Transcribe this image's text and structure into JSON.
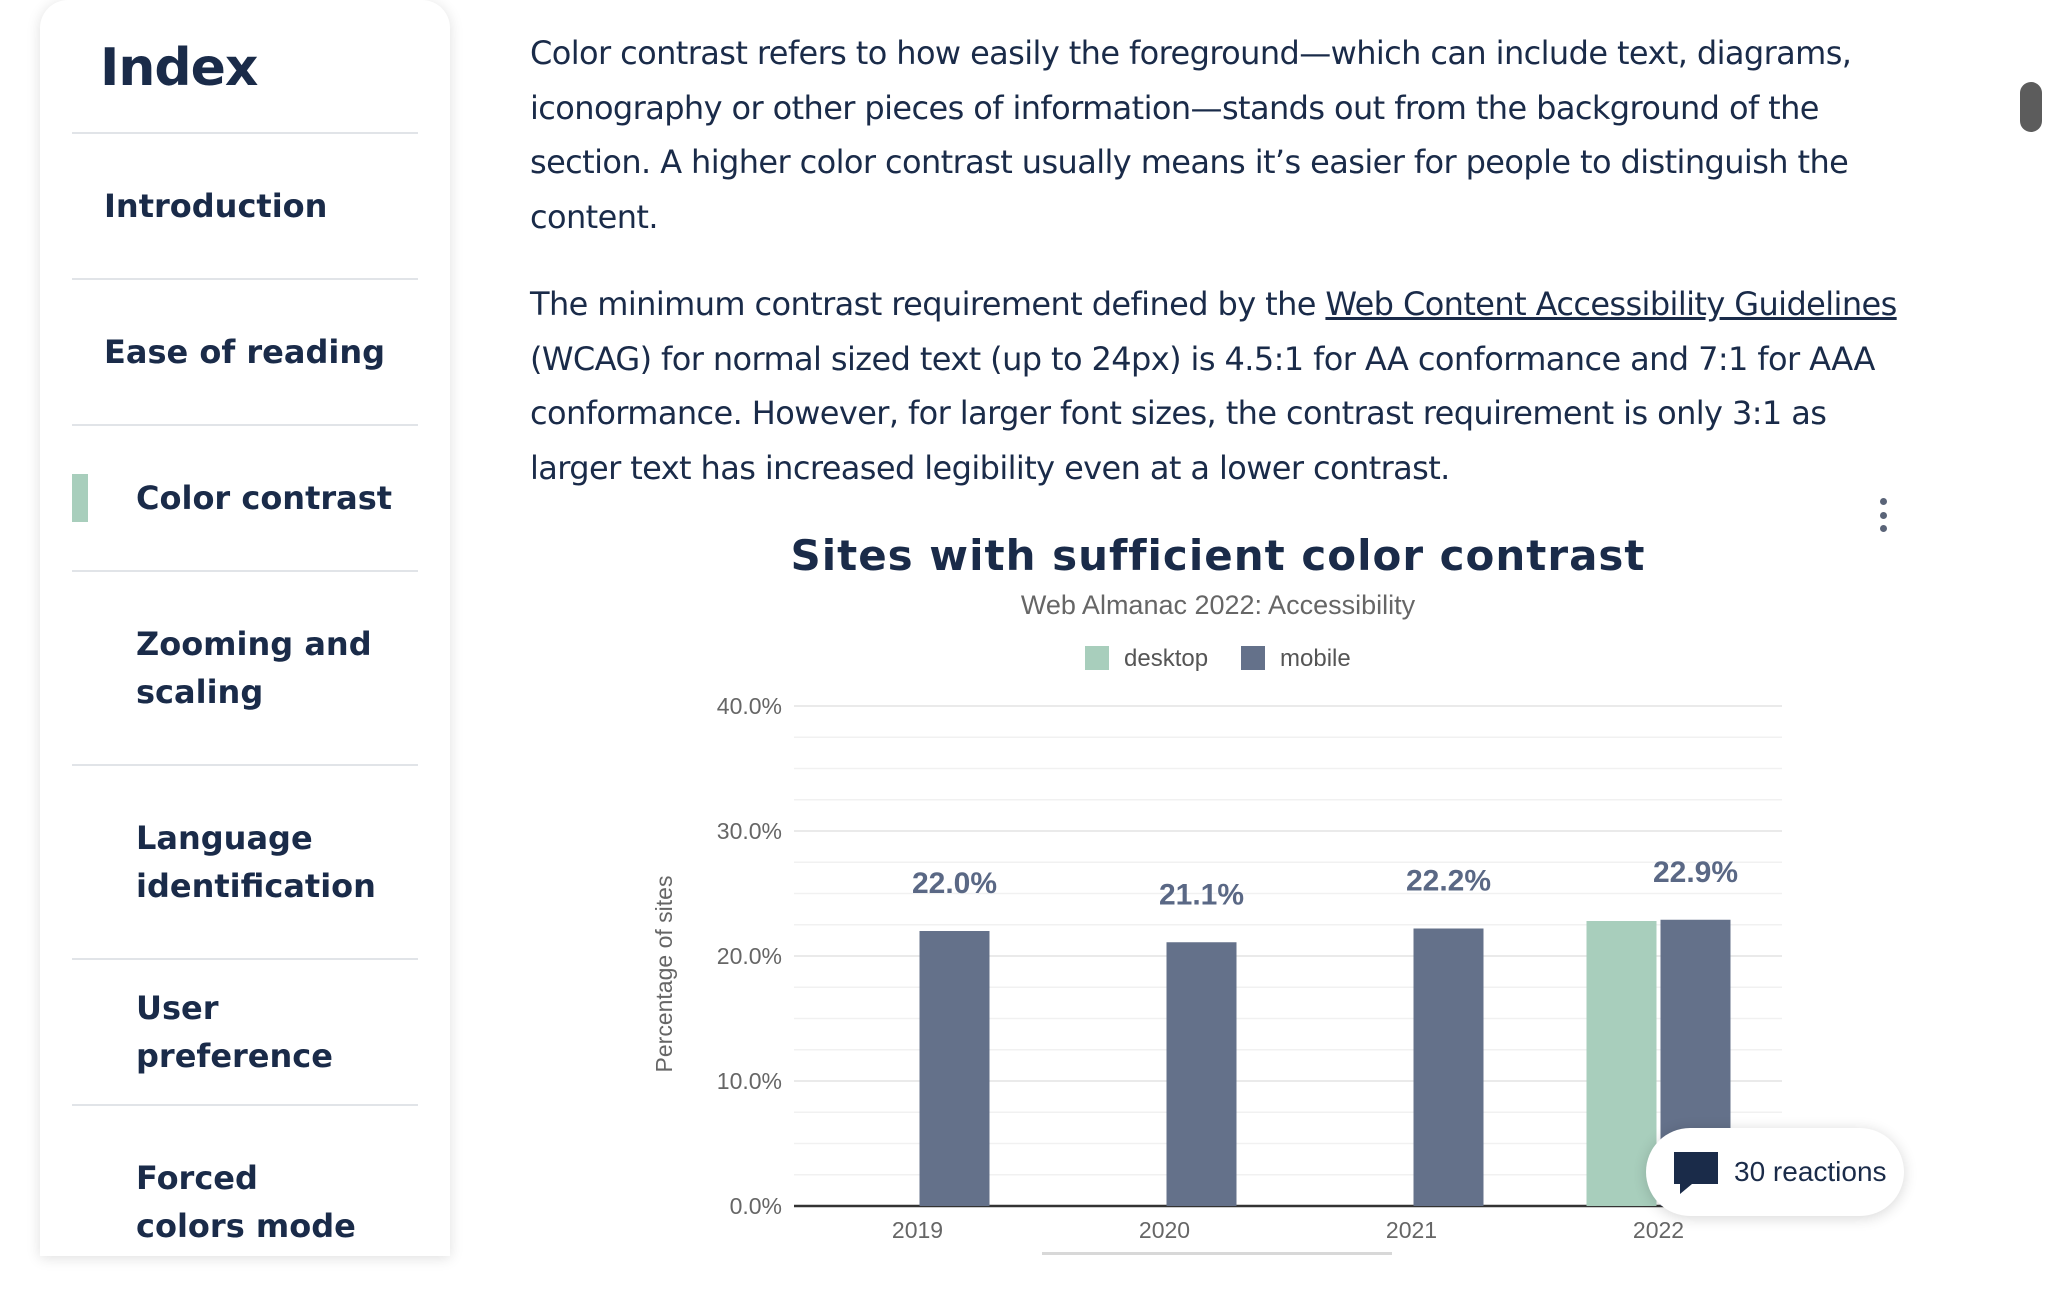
{
  "sidebar": {
    "title": "Index",
    "items": [
      {
        "label": "Introduction"
      },
      {
        "label": "Ease of reading"
      },
      {
        "label": "Color contrast"
      },
      {
        "label": "Zooming and scaling"
      },
      {
        "label": "Language identification"
      },
      {
        "label": "User preference"
      },
      {
        "label": "Forced colors mode"
      }
    ]
  },
  "article": {
    "p1": "Color contrast refers to how easily the foreground—which can include text, diagrams, iconography or other pieces of information—stands out from the background of the section. A higher color contrast usually means it’s easier for people to distinguish the content.",
    "p2_before": "The minimum contrast requirement defined by the ",
    "p2_link": "Web Content Accessibility Guidelines",
    "p2_after": " (WCAG) for normal sized text (up to 24px) is 4.5:1 for AA conformance and 7:1 for AAA conformance. However, for larger font sizes, the contrast requirement is only 3:1 as larger text has increased legibility even at a lower contrast."
  },
  "chart_data": {
    "type": "bar",
    "title": "Sites with sufficient color contrast",
    "subtitle": "Web Almanac 2022: Accessibility",
    "ylabel": "Percentage of sites",
    "xlabel": "",
    "ylim": [
      0,
      40
    ],
    "yticks": [
      "0.0%",
      "10.0%",
      "20.0%",
      "30.0%",
      "40.0%"
    ],
    "legend_position": "top",
    "categories": [
      "2019",
      "2020",
      "2021",
      "2022"
    ],
    "series": [
      {
        "name": "desktop",
        "color": "#a8cebc",
        "values": [
          null,
          null,
          null,
          22.8
        ]
      },
      {
        "name": "mobile",
        "color": "#64718a",
        "values": [
          22.0,
          21.1,
          22.2,
          22.9
        ]
      }
    ],
    "data_labels": [
      "22.0%",
      "21.1%",
      "22.2%",
      "22.9%"
    ]
  },
  "reactions": {
    "label": "30 reactions",
    "icon": "comment-icon"
  },
  "colors": {
    "accent": "#a8cebc",
    "text": "#1a2b49",
    "mobile": "#64718a"
  }
}
